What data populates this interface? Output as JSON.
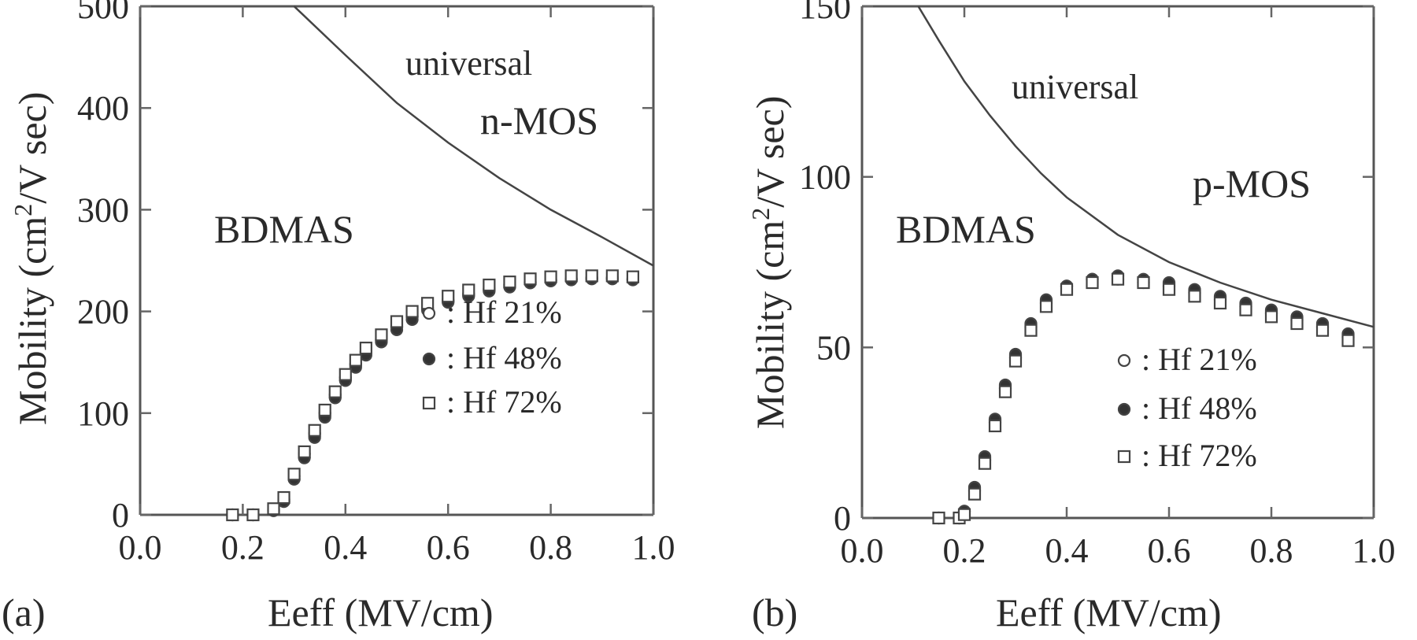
{
  "chart_data": [
    {
      "panel": "(a)",
      "type": "scatter",
      "xlabel": "Eeff (MV/cm)",
      "ylabel": "Mobility (cm²/V sec)",
      "xlim": [
        0.0,
        1.0
      ],
      "ylim": [
        0,
        500
      ],
      "xticks": [
        "0.0",
        "0.2",
        "0.4",
        "0.6",
        "0.8",
        "1.0"
      ],
      "yticks": [
        "0",
        "100",
        "200",
        "300",
        "400",
        "500"
      ],
      "annotations": {
        "sample": "BDMAS",
        "device": "n-MOS",
        "curve": "universal"
      },
      "universal_curve": {
        "x": [
          0.3,
          0.4,
          0.5,
          0.6,
          0.7,
          0.8,
          0.9,
          1.0
        ],
        "y": [
          510,
          452,
          405,
          366,
          331,
          300,
          273,
          245
        ]
      },
      "series": [
        {
          "name": ": Hf 21%",
          "marker": "open-circle",
          "x": [
            0.18,
            0.22,
            0.26,
            0.28,
            0.3,
            0.32,
            0.34,
            0.36,
            0.38,
            0.4,
            0.42,
            0.44,
            0.47,
            0.5,
            0.53,
            0.56,
            0.6,
            0.64,
            0.68,
            0.72,
            0.76,
            0.8,
            0.84,
            0.88,
            0.92,
            0.96
          ],
          "y": [
            0,
            0,
            5,
            15,
            38,
            60,
            80,
            100,
            118,
            135,
            148,
            160,
            172,
            185,
            195,
            203,
            211,
            217,
            222,
            226,
            229,
            231,
            232,
            233,
            233,
            232
          ]
        },
        {
          "name": ": Hf 48%",
          "marker": "filled-circle",
          "x": [
            0.18,
            0.22,
            0.26,
            0.28,
            0.3,
            0.32,
            0.34,
            0.36,
            0.38,
            0.4,
            0.42,
            0.44,
            0.47,
            0.5,
            0.53,
            0.56,
            0.6,
            0.64,
            0.68,
            0.72,
            0.76,
            0.8,
            0.84,
            0.88,
            0.92,
            0.96
          ],
          "y": [
            0,
            0,
            4,
            13,
            35,
            56,
            76,
            96,
            115,
            132,
            145,
            157,
            170,
            182,
            192,
            201,
            209,
            215,
            220,
            224,
            228,
            230,
            231,
            232,
            232,
            231
          ]
        },
        {
          "name": ": Hf 72%",
          "marker": "open-square",
          "x": [
            0.18,
            0.22,
            0.26,
            0.28,
            0.3,
            0.32,
            0.34,
            0.36,
            0.38,
            0.4,
            0.42,
            0.44,
            0.47,
            0.5,
            0.53,
            0.56,
            0.6,
            0.64,
            0.68,
            0.72,
            0.76,
            0.8,
            0.84,
            0.88,
            0.92,
            0.96
          ],
          "y": [
            0,
            0,
            6,
            17,
            40,
            62,
            83,
            103,
            121,
            138,
            152,
            164,
            177,
            190,
            200,
            208,
            215,
            221,
            226,
            229,
            232,
            234,
            235,
            235,
            235,
            234
          ]
        }
      ]
    },
    {
      "panel": "(b)",
      "type": "scatter",
      "xlabel": "Eeff (MV/cm)",
      "ylabel": "Mobility (cm²/V sec)",
      "xlim": [
        0.0,
        1.0
      ],
      "ylim": [
        0,
        150
      ],
      "xticks": [
        "0.0",
        "0.2",
        "0.4",
        "0.6",
        "0.8",
        "1.0"
      ],
      "yticks": [
        "0",
        "50",
        "100",
        "150"
      ],
      "annotations": {
        "sample": "BDMAS",
        "device": "p-MOS",
        "curve": "universal"
      },
      "universal_curve": {
        "x": [
          0.11,
          0.15,
          0.2,
          0.25,
          0.3,
          0.35,
          0.4,
          0.5,
          0.6,
          0.7,
          0.8,
          0.9,
          1.0
        ],
        "y": [
          150,
          140,
          128,
          118,
          109,
          101,
          94,
          83,
          75,
          69,
          64,
          60,
          56
        ]
      },
      "series": [
        {
          "name": ": Hf 21%",
          "marker": "open-circle",
          "x": [
            0.15,
            0.19,
            0.2,
            0.22,
            0.24,
            0.26,
            0.28,
            0.3,
            0.33,
            0.36,
            0.4,
            0.45,
            0.5,
            0.55,
            0.6,
            0.65,
            0.7,
            0.75,
            0.8,
            0.85,
            0.9,
            0.95
          ],
          "y": [
            0,
            0,
            2,
            8,
            17,
            28,
            38,
            47,
            56,
            63,
            68,
            70,
            70,
            69,
            68,
            66,
            64,
            62,
            60,
            58,
            56,
            53
          ]
        },
        {
          "name": ": Hf 48%",
          "marker": "filled-circle",
          "x": [
            0.15,
            0.19,
            0.2,
            0.22,
            0.24,
            0.26,
            0.28,
            0.3,
            0.33,
            0.36,
            0.4,
            0.45,
            0.5,
            0.55,
            0.6,
            0.65,
            0.7,
            0.75,
            0.8,
            0.85,
            0.9,
            0.95
          ],
          "y": [
            0,
            0,
            2,
            9,
            18,
            29,
            39,
            48,
            57,
            64,
            68,
            70,
            71,
            70,
            69,
            67,
            65,
            63,
            61,
            59,
            57,
            54
          ]
        },
        {
          "name": ": Hf 72%",
          "marker": "open-square",
          "x": [
            0.15,
            0.19,
            0.2,
            0.22,
            0.24,
            0.26,
            0.28,
            0.3,
            0.33,
            0.36,
            0.4,
            0.45,
            0.5,
            0.55,
            0.6,
            0.65,
            0.7,
            0.75,
            0.8,
            0.85,
            0.9,
            0.95
          ],
          "y": [
            0,
            0,
            1,
            7,
            16,
            27,
            37,
            46,
            55,
            62,
            67,
            69,
            70,
            69,
            67,
            65,
            63,
            61,
            59,
            57,
            55,
            52
          ]
        }
      ]
    }
  ]
}
